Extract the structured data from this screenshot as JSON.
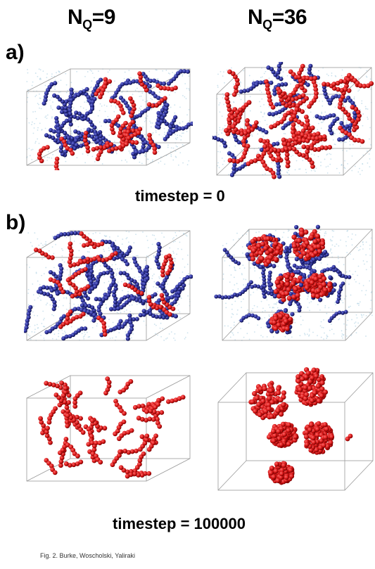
{
  "header": {
    "left": {
      "main": "N",
      "sub": "Q",
      "value": "=9"
    },
    "right": {
      "main": "N",
      "sub": "Q",
      "value": "=36"
    }
  },
  "panels": {
    "a_label": "a)",
    "b_label": "b)"
  },
  "timesteps": {
    "a": "timestep = 0",
    "b": "timestep = 100000"
  },
  "caption": "Fig. 2. Burke, Woscholski, Yaliraki",
  "colors": {
    "red_particle": "#d81818",
    "blue_particle": "#2b2f96",
    "light_blue_particle": "#b7d6e6",
    "box_edge": "#9a9a9a"
  }
}
